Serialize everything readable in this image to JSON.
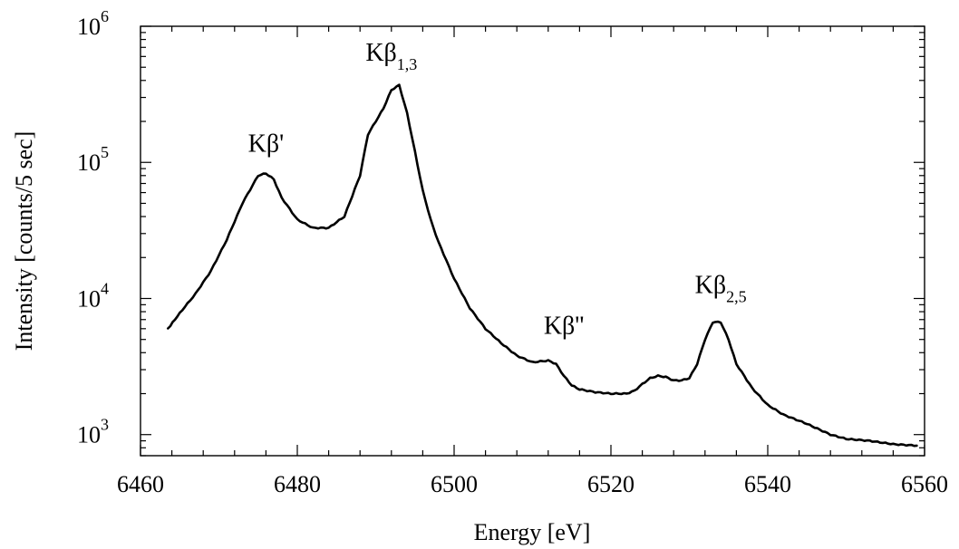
{
  "chart_data": {
    "type": "line",
    "title": "",
    "xlabel": "Energy [eV]",
    "ylabel": "Intensity [counts/5 sec]",
    "xlim": [
      6460,
      6560
    ],
    "ylim": [
      700,
      1000000
    ],
    "yscale": "log",
    "grid": false,
    "legend": "none",
    "x_ticks": [
      "6460",
      "6480",
      "6500",
      "6520",
      "6540",
      "6560"
    ],
    "y_ticks": [
      {
        "base": "10",
        "exp": "3"
      },
      {
        "base": "10",
        "exp": "4"
      },
      {
        "base": "10",
        "exp": "5"
      },
      {
        "base": "10",
        "exp": "6"
      }
    ],
    "annotations": [
      {
        "main": "Kβ'",
        "sub": "",
        "x": 6476,
        "y": 120000
      },
      {
        "main": "Kβ",
        "sub": "1,3",
        "x": 6492,
        "y": 560000
      },
      {
        "main": "Kβ''",
        "sub": "",
        "x": 6514,
        "y": 5500
      },
      {
        "main": "Kβ",
        "sub": "2,5",
        "x": 6534,
        "y": 11000
      }
    ],
    "series": [
      {
        "color": "#000000",
        "x": [
          6463.5,
          6465,
          6467,
          6469,
          6471,
          6473,
          6475,
          6476,
          6477,
          6478,
          6480,
          6482,
          6484,
          6486,
          6488,
          6489,
          6490,
          6491,
          6492,
          6493,
          6494,
          6495,
          6496,
          6497,
          6498,
          6500,
          6502,
          6504,
          6506,
          6508,
          6510,
          6512,
          6513,
          6514,
          6515,
          6516,
          6518,
          6520,
          6522,
          6523,
          6524,
          6525,
          6526,
          6527,
          6528,
          6529,
          6530,
          6531,
          6532,
          6533,
          6534,
          6535,
          6536,
          6537,
          6538,
          6540,
          6542,
          6545,
          6548,
          6550,
          6553,
          6556,
          6559
        ],
        "y": [
          6000,
          7800,
          10800,
          16000,
          27000,
          50000,
          80000,
          83000,
          75000,
          55000,
          38000,
          33000,
          33000,
          40000,
          80000,
          160000,
          200000,
          250000,
          340000,
          370000,
          230000,
          120000,
          62000,
          38000,
          26000,
          14000,
          8500,
          6000,
          4700,
          3800,
          3400,
          3500,
          3300,
          2700,
          2300,
          2150,
          2050,
          2000,
          2000,
          2100,
          2350,
          2600,
          2700,
          2650,
          2500,
          2500,
          2600,
          3300,
          5000,
          6700,
          6700,
          5000,
          3300,
          2700,
          2200,
          1650,
          1400,
          1200,
          1000,
          930,
          900,
          850,
          830
        ]
      }
    ]
  }
}
